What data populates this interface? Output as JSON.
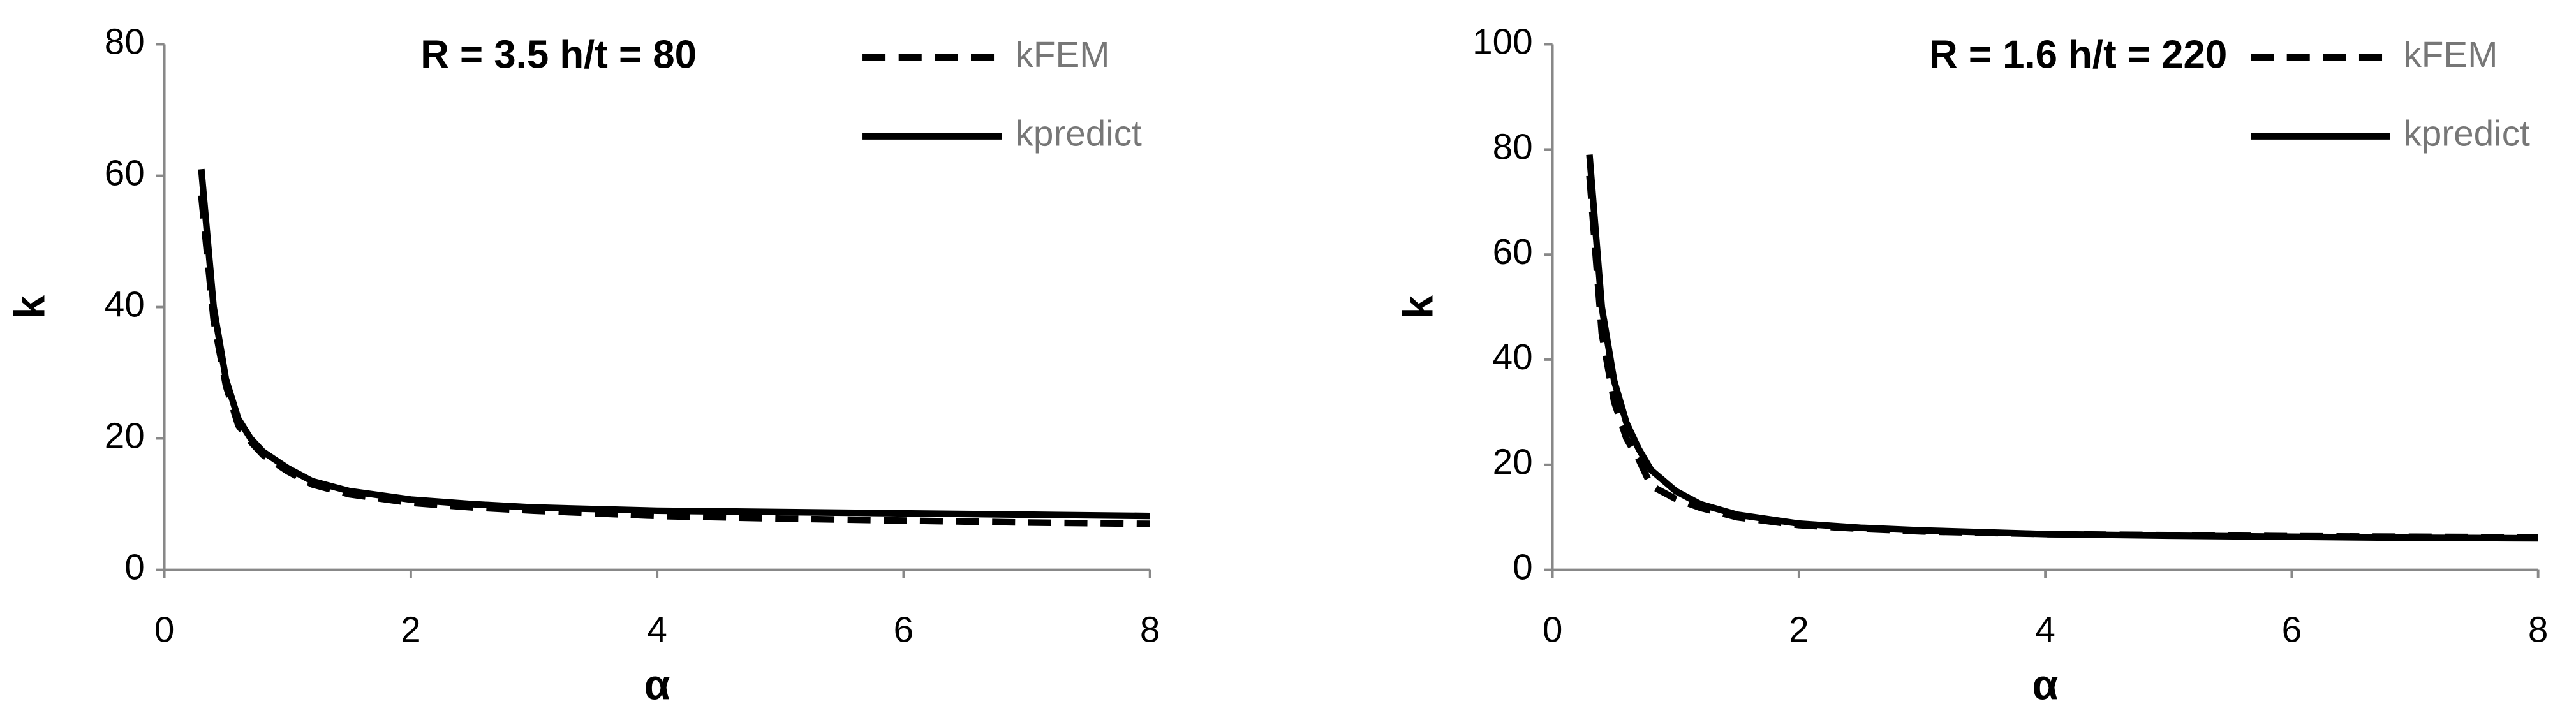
{
  "chart_data": [
    {
      "type": "line",
      "title": "R = 3.5 h/t = 80",
      "xlabel": "α",
      "ylabel": "k",
      "x": [
        0.3,
        0.4,
        0.5,
        0.6,
        0.7,
        0.8,
        1,
        1.2,
        1.5,
        2,
        2.5,
        3,
        4,
        5,
        6,
        7,
        8
      ],
      "series": [
        {
          "name": "kFEM",
          "color": "#000000",
          "dash": true,
          "values": [
            57,
            38,
            28,
            22,
            19.5,
            17.5,
            15,
            13,
            11.5,
            10.2,
            9.5,
            9,
            8.2,
            7.8,
            7.5,
            7.2,
            7.0
          ]
        },
        {
          "name": "kpredict",
          "color": "#000000",
          "dash": false,
          "values": [
            61,
            40,
            29,
            23,
            20,
            18,
            15.5,
            13.5,
            12,
            10.7,
            10,
            9.5,
            9,
            8.8,
            8.6,
            8.4,
            8.2
          ]
        }
      ],
      "xlim": [
        0,
        8
      ],
      "xticks": [
        0,
        2,
        4,
        6,
        8
      ],
      "ylim": [
        0,
        80
      ],
      "yticks": [
        0,
        20,
        40,
        60,
        80
      ],
      "grid": false,
      "legend": "upper right"
    },
    {
      "type": "line",
      "title": "R = 1.6 h/t = 220",
      "xlabel": "α",
      "ylabel": "k",
      "x": [
        0.3,
        0.4,
        0.5,
        0.6,
        0.7,
        0.8,
        1,
        1.2,
        1.5,
        2,
        2.5,
        3,
        4,
        5,
        6,
        7,
        8
      ],
      "series": [
        {
          "name": "kFEM",
          "color": "#000000",
          "dash": true,
          "values": [
            75,
            45,
            32,
            25,
            21,
            16,
            13.5,
            11.8,
            10,
            8.5,
            7.8,
            7.3,
            6.8,
            6.6,
            6.4,
            6.3,
            6.2
          ]
        },
        {
          "name": "kpredict",
          "color": "#000000",
          "dash": false,
          "values": [
            79,
            50,
            36,
            28,
            23,
            19,
            15,
            12.5,
            10.5,
            8.8,
            8,
            7.5,
            6.8,
            6.5,
            6.3,
            6.1,
            6
          ]
        }
      ],
      "xlim": [
        0,
        8
      ],
      "xticks": [
        0,
        2,
        4,
        6,
        8
      ],
      "ylim": [
        0,
        100
      ],
      "yticks": [
        0,
        20,
        40,
        60,
        80,
        100
      ],
      "grid": false,
      "legend": "upper right"
    }
  ]
}
